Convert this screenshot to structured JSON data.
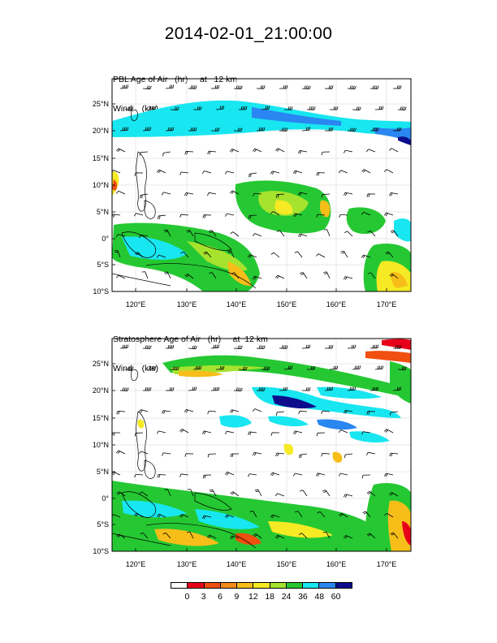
{
  "title": "2014-02-01_21:00:00",
  "panels": [
    {
      "id": "pbl",
      "label_line1": "PBL Age of Air   (hr)     at   12 km",
      "label_line2": "Wind    (kts)      at   12 km"
    },
    {
      "id": "strat",
      "label_line1": "Stratosphere Age of Air   (hr)     at  12 km",
      "label_line2": "Wind    (kts)      at   12 km"
    }
  ],
  "lat_ticks": [
    "25°N",
    "20°N",
    "15°N",
    "10°N",
    "5°N",
    "0°",
    "5°S",
    "10°S"
  ],
  "lon_ticks": [
    "120°E",
    "130°E",
    "140°E",
    "150°E",
    "160°E",
    "170°E"
  ],
  "legend": {
    "labels": [
      "0",
      "3",
      "6",
      "9",
      "12",
      "18",
      "24",
      "36",
      "48",
      "60"
    ],
    "colors": [
      "#ffffff",
      "#e8001a",
      "#f04f10",
      "#f58a14",
      "#f7be1a",
      "#f6ea24",
      "#a6e32e",
      "#25c832",
      "#18e6f0",
      "#2a86f0",
      "#0c0c8c"
    ]
  },
  "map": {
    "lon_range": [
      116,
      173
    ],
    "lat_range": [
      -10,
      29
    ],
    "colors": {
      "land": "#000000",
      "wind": "#000000"
    }
  }
}
